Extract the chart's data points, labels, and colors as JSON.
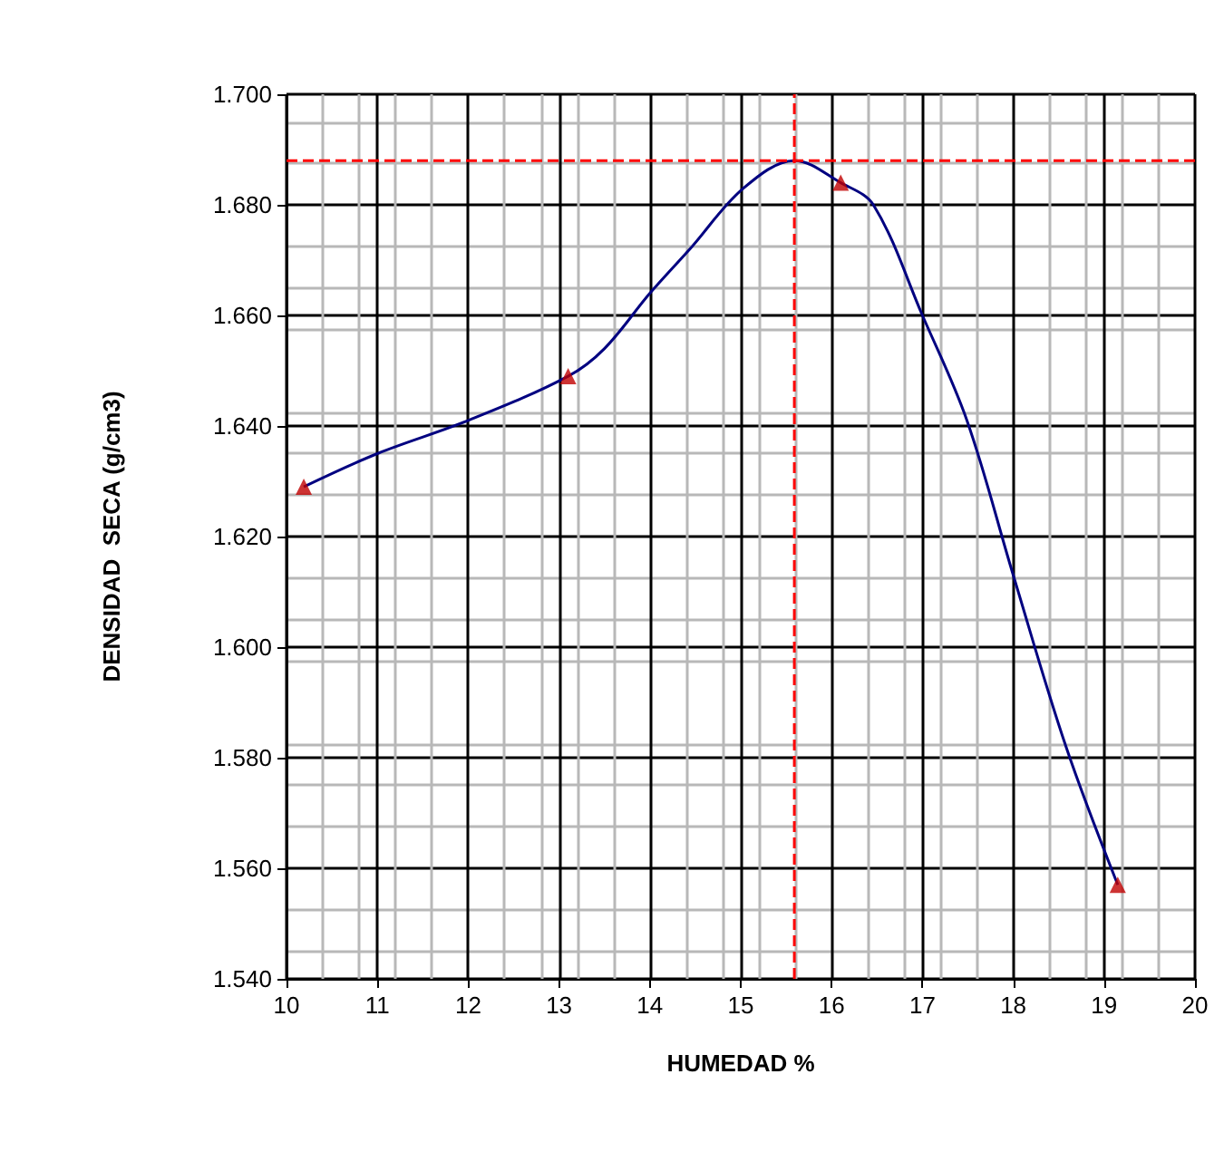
{
  "chart_data": {
    "type": "line",
    "xlabel": "HUMEDAD %",
    "ylabel": "DENSIDAD  SECA (g/cm3)",
    "series": [
      {
        "color": "#000080",
        "marker": "none",
        "x": [
          10.19,
          11,
          12,
          13.1,
          13.5,
          14,
          14.44,
          15.03,
          15.59,
          16.1,
          16.46,
          17,
          17.49,
          18,
          18.58,
          19.15
        ],
        "values": [
          1.629,
          1.635,
          1.641,
          1.649,
          1.654,
          1.664,
          1.672,
          1.683,
          1.688,
          1.684,
          1.68,
          1.66,
          1.641,
          1.613,
          1.582,
          1.557
        ]
      },
      {
        "type": "scatter",
        "color": "#c00000",
        "marker": "triangle",
        "x": [
          10.19,
          13.1,
          16.1,
          19.15
        ],
        "values": [
          1.629,
          1.649,
          1.684,
          1.557
        ]
      }
    ],
    "xlim": [
      10,
      20
    ],
    "xticks": [
      10,
      11,
      12,
      13,
      14,
      15,
      16,
      17,
      18,
      19,
      20
    ],
    "ylim": [
      1.54,
      1.7
    ],
    "yticks": [
      {
        "value": 1.54,
        "label": "1.540"
      },
      {
        "value": 1.56,
        "label": "1.560"
      },
      {
        "value": 1.58,
        "label": "1.580"
      },
      {
        "value": 1.6,
        "label": "1.600"
      },
      {
        "value": 1.62,
        "label": "1.620"
      },
      {
        "value": 1.64,
        "label": "1.640"
      },
      {
        "value": 1.66,
        "label": "1.660"
      },
      {
        "value": 1.68,
        "label": "1.680"
      },
      {
        "value": 1.7,
        "label": "1.700"
      }
    ],
    "grid": true,
    "ref_lines": [
      {
        "axis": "x",
        "value": 15.59,
        "color": "#ff0000",
        "line_style": "dashed"
      },
      {
        "axis": "y",
        "value": 1.688,
        "color": "#ff0000",
        "line_style": "dashed"
      }
    ]
  }
}
